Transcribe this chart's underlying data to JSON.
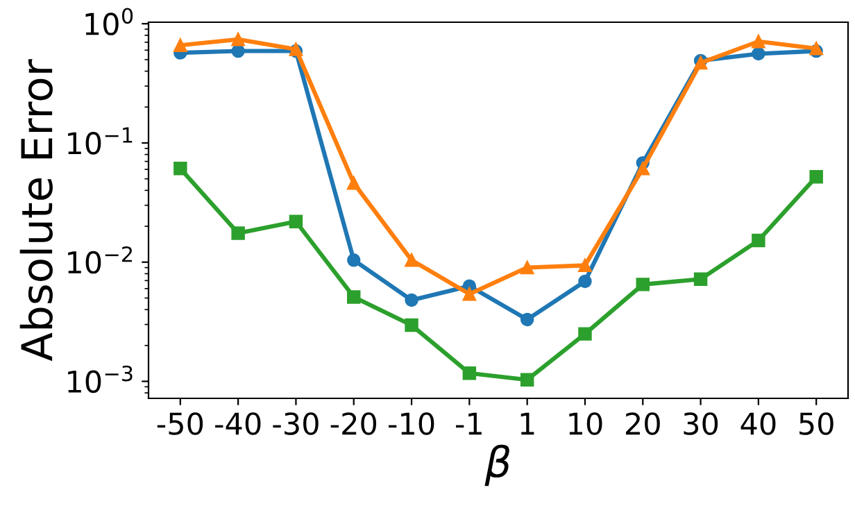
{
  "chart_data": {
    "type": "line",
    "xlabel": "β",
    "ylabel": "Absolute Error",
    "log": "y",
    "grid": false,
    "categories": [
      "-50",
      "-40",
      "-30",
      "-20",
      "-10",
      "-1",
      "1",
      "10",
      "20",
      "30",
      "40",
      "50"
    ],
    "ylim": [
      0.00072,
      1.03
    ],
    "yticks": [
      {
        "value": 0.001,
        "label": "10$^{−3}$"
      },
      {
        "value": 0.01,
        "label": "10$^{−2}$"
      },
      {
        "value": 0.1,
        "label": "10$^{−1}$"
      },
      {
        "value": 1,
        "label": "10$^{0}$"
      }
    ],
    "series": [
      {
        "color": "#1f77b4",
        "marker": "circle",
        "values": [
          0.57,
          0.59,
          0.59,
          0.0104,
          0.0048,
          0.0063,
          0.0033,
          0.0069,
          0.068,
          0.49,
          0.56,
          0.59
        ]
      },
      {
        "color": "#ff7f0e",
        "marker": "triangle",
        "values": [
          0.66,
          0.74,
          0.61,
          0.046,
          0.0104,
          0.0054,
          0.009,
          0.0094,
          0.061,
          0.47,
          0.71,
          0.62
        ]
      },
      {
        "color": "#2ca02c",
        "marker": "square",
        "values": [
          0.061,
          0.0175,
          0.0219,
          0.0051,
          0.00296,
          0.00117,
          0.00103,
          0.0025,
          0.0065,
          0.0072,
          0.0152,
          0.052
        ]
      }
    ]
  }
}
